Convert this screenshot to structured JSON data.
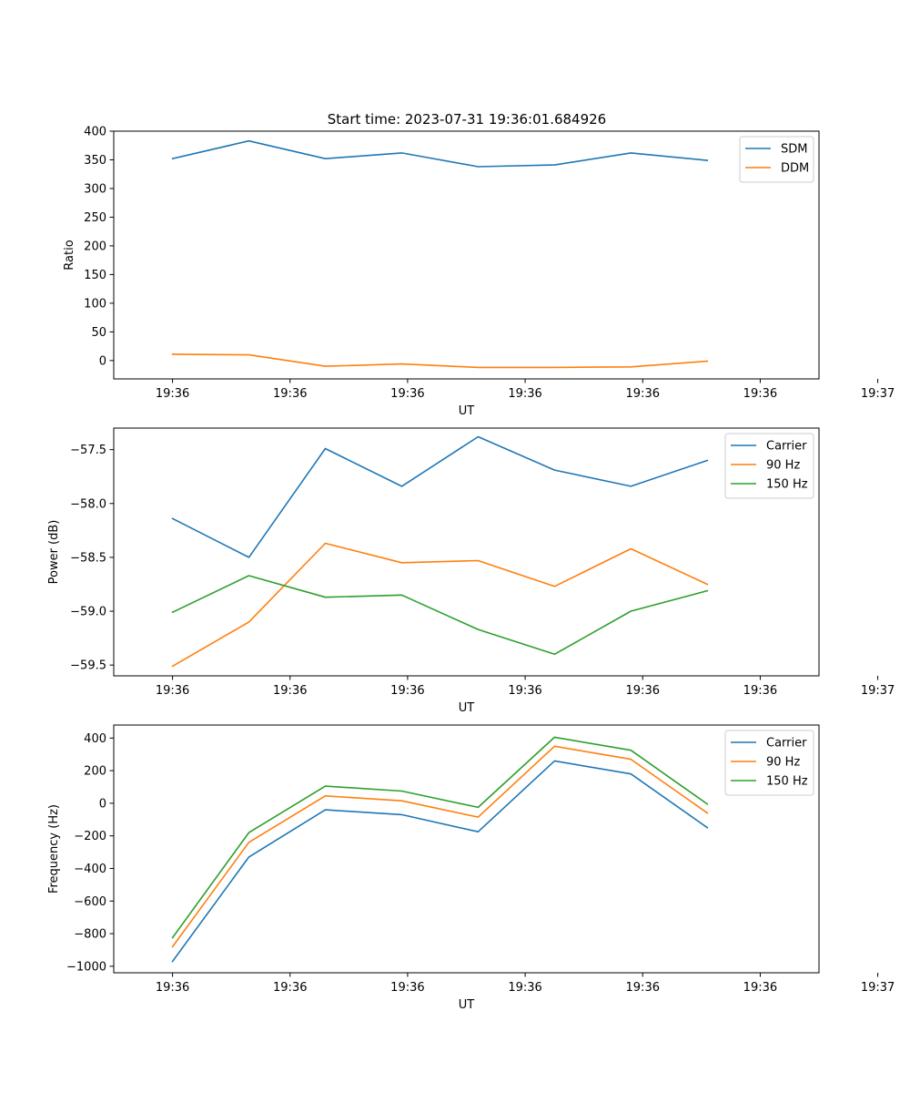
{
  "figure": {
    "title": "Start time: 2023-07-31 19:36:01.684926"
  },
  "colors": {
    "blue": "#1f77b4",
    "orange": "#ff7f0e",
    "green": "#2ca02c"
  },
  "chart_data": [
    {
      "type": "line",
      "title": "Start time: 2023-07-31 19:36:01.684926",
      "xlabel": "UT",
      "ylabel": "Ratio",
      "xlim": [
        -0.5,
        5.5
      ],
      "ylim": [
        -32,
        400
      ],
      "x": [
        0,
        0.65,
        1.3,
        1.95,
        2.6,
        3.25,
        3.9,
        4.55
      ],
      "xticks": [
        0,
        1,
        2,
        3,
        4,
        5,
        6
      ],
      "xtick_labels": [
        "19:36",
        "19:36",
        "19:36",
        "19:36",
        "19:36",
        "19:36",
        "19:37"
      ],
      "yticks": [
        0,
        50,
        100,
        150,
        200,
        250,
        300,
        350,
        400
      ],
      "ytick_labels": [
        "0",
        "50",
        "100",
        "150",
        "200",
        "250",
        "300",
        "350",
        "400"
      ],
      "legend_position": "top-right",
      "series": [
        {
          "name": "SDM",
          "color": "#1f77b4",
          "values": [
            352,
            383,
            352,
            362,
            338,
            341,
            362,
            349
          ]
        },
        {
          "name": "DDM",
          "color": "#ff7f0e",
          "values": [
            11,
            10,
            -10,
            -6,
            -12,
            -12,
            -11,
            -1
          ]
        }
      ]
    },
    {
      "type": "line",
      "xlabel": "UT",
      "ylabel": "Power (dB)",
      "xlim": [
        -0.5,
        5.5
      ],
      "ylim": [
        -59.6,
        -57.3
      ],
      "x": [
        0,
        0.65,
        1.3,
        1.95,
        2.6,
        3.25,
        3.9,
        4.55
      ],
      "xticks": [
        0,
        1,
        2,
        3,
        4,
        5,
        6
      ],
      "xtick_labels": [
        "19:36",
        "19:36",
        "19:36",
        "19:36",
        "19:36",
        "19:36",
        "19:37"
      ],
      "yticks": [
        -59.5,
        -59.0,
        -58.5,
        -58.0,
        -57.5
      ],
      "ytick_labels": [
        "−59.5",
        "−59.0",
        "−58.5",
        "−58.0",
        "−57.5"
      ],
      "legend_position": "top-right",
      "series": [
        {
          "name": "Carrier",
          "color": "#1f77b4",
          "values": [
            -58.14,
            -58.5,
            -57.49,
            -57.84,
            -57.38,
            -57.69,
            -57.84,
            -57.6
          ]
        },
        {
          "name": "90 Hz",
          "color": "#ff7f0e",
          "values": [
            -59.51,
            -59.1,
            -58.37,
            -58.55,
            -58.53,
            -58.77,
            -58.42,
            -58.75
          ]
        },
        {
          "name": "150 Hz",
          "color": "#2ca02c",
          "values": [
            -59.01,
            -58.67,
            -58.87,
            -58.85,
            -59.17,
            -59.4,
            -59.0,
            -58.81
          ]
        }
      ]
    },
    {
      "type": "line",
      "xlabel": "UT",
      "ylabel": "Frequency (Hz)",
      "xlim": [
        -0.5,
        5.5
      ],
      "ylim": [
        -1040,
        480
      ],
      "x": [
        0,
        0.65,
        1.3,
        1.95,
        2.6,
        3.25,
        3.9,
        4.55
      ],
      "xticks": [
        0,
        1,
        2,
        3,
        4,
        5,
        6
      ],
      "xtick_labels": [
        "19:36",
        "19:36",
        "19:36",
        "19:36",
        "19:36",
        "19:36",
        "19:37"
      ],
      "yticks": [
        -1000,
        -800,
        -600,
        -400,
        -200,
        0,
        200,
        400
      ],
      "ytick_labels": [
        "−1000",
        "−800",
        "−600",
        "−400",
        "−200",
        "0",
        "200",
        "400"
      ],
      "legend_position": "top-right",
      "series": [
        {
          "name": "Carrier",
          "color": "#1f77b4",
          "values": [
            -970,
            -330,
            -40,
            -70,
            -175,
            260,
            180,
            -150
          ]
        },
        {
          "name": "90 Hz",
          "color": "#ff7f0e",
          "values": [
            -880,
            -240,
            45,
            15,
            -85,
            350,
            270,
            -60
          ]
        },
        {
          "name": "150 Hz",
          "color": "#2ca02c",
          "values": [
            -825,
            -180,
            105,
            75,
            -25,
            405,
            325,
            -5
          ]
        }
      ]
    }
  ]
}
